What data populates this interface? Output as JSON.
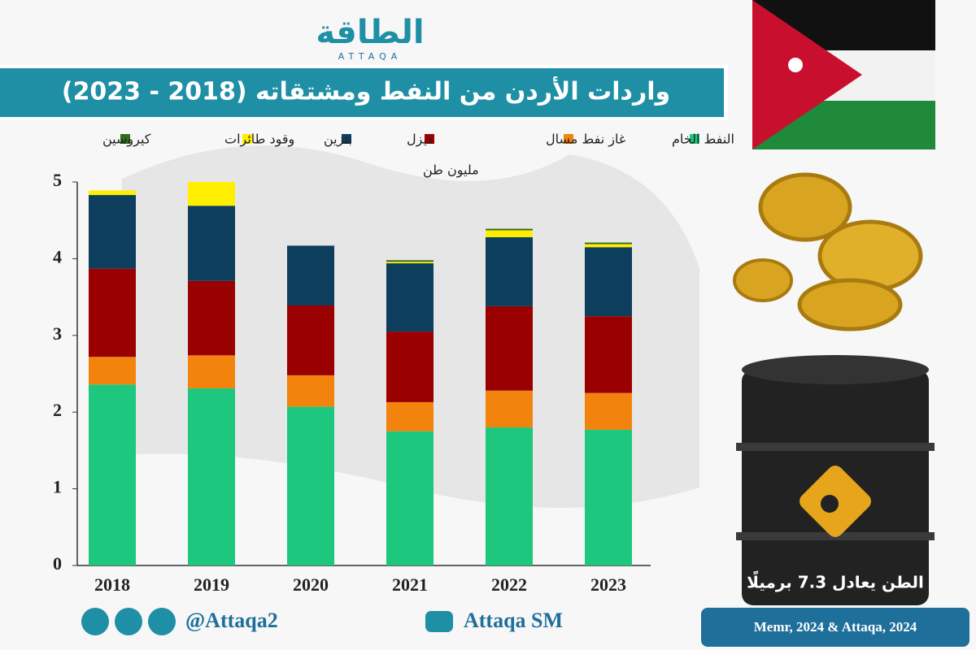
{
  "chart_data": {
    "type": "stacked_bar",
    "title": "واردات الأردن من النفط ومشتقاته (2018 - 2023)",
    "y_label": "مليون طن",
    "categories": [
      "2018",
      "2019",
      "2020",
      "2021",
      "2022",
      "2023"
    ],
    "series": [
      {
        "name": "النفط الخام",
        "color": "#1dc77d",
        "values": [
          2.36,
          2.31,
          2.07,
          1.75,
          1.8,
          1.77
        ]
      },
      {
        "name": "غاز نفط مسال",
        "color": "#f2840e",
        "values": [
          0.36,
          0.43,
          0.41,
          0.38,
          0.48,
          0.48
        ]
      },
      {
        "name": "ديزل",
        "color": "#9a0000",
        "values": [
          1.15,
          0.97,
          0.91,
          0.92,
          1.1,
          1.0
        ]
      },
      {
        "name": "بنزين",
        "color": "#0d3e5e",
        "values": [
          0.96,
          0.98,
          0.78,
          0.89,
          0.9,
          0.9
        ]
      },
      {
        "name": "وقود طائرات",
        "color": "#ffee00",
        "values": [
          0.06,
          0.31,
          0,
          0.02,
          0.09,
          0.04
        ]
      },
      {
        "name": "كيروسين",
        "color": "#2e6b1a",
        "values": [
          0,
          0,
          0,
          0.02,
          0.02,
          0.02
        ]
      }
    ],
    "ylim": [
      0,
      5
    ],
    "yticks": [
      0,
      1,
      2,
      3,
      4,
      5
    ],
    "note": "الطن يعادل 7.3 برميلًا",
    "source": "Memr, 2024 & Attaqa, 2024"
  },
  "branding": {
    "logo": "الطاقة",
    "logo_latin": "ATTAQA",
    "social_handle": "@Attaqa2",
    "youtube": "Attaqa SM"
  }
}
